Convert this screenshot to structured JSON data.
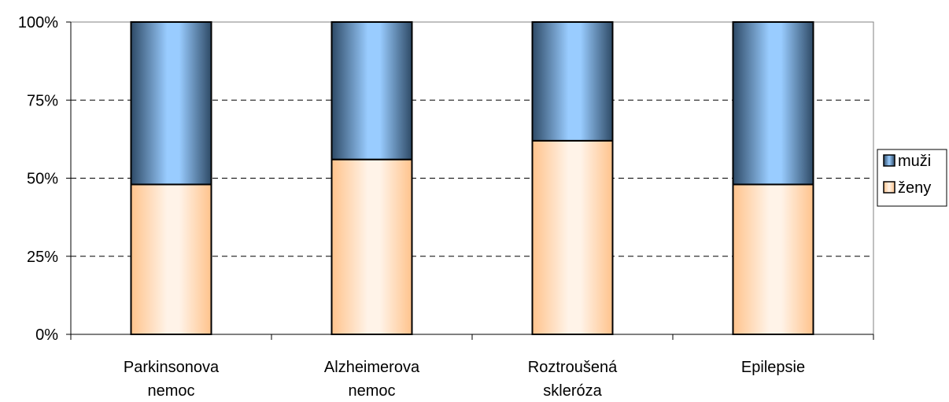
{
  "chart_data": {
    "type": "bar",
    "stacked": true,
    "percent_stacked": true,
    "title": "",
    "xlabel": "",
    "ylabel": "",
    "ylim": [
      0,
      100
    ],
    "y_ticks": [
      "0%",
      "25%",
      "50%",
      "75%",
      "100%"
    ],
    "y_tick_values": [
      0,
      25,
      50,
      75,
      100
    ],
    "grid": true,
    "legend_position": "right",
    "categories": [
      [
        "Parkinsonova",
        "nemoc"
      ],
      [
        "Alzheimerova",
        "nemoc"
      ],
      [
        "Roztroušená",
        "skleróza"
      ],
      [
        "Epilepsie"
      ]
    ],
    "series": [
      {
        "name": "ženy",
        "values": [
          48,
          56,
          62,
          48
        ],
        "color": "#FFD9B3"
      },
      {
        "name": "muži",
        "values": [
          52,
          44,
          38,
          52
        ],
        "color": "#99CCFF"
      }
    ],
    "legend_order": [
      "muži",
      "ženy"
    ]
  }
}
